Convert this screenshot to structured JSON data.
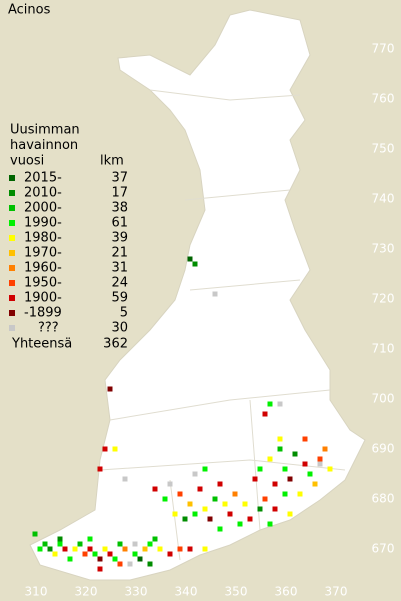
{
  "title": "Acinos",
  "legend": {
    "heading": [
      "Uusimman",
      "havainnon",
      "vuosi"
    ],
    "count_heading": "lkm",
    "items": [
      {
        "label": "2015-",
        "count": 37,
        "color": "#006400"
      },
      {
        "label": "2010-",
        "count": 17,
        "color": "#008c00"
      },
      {
        "label": "2000-",
        "count": 38,
        "color": "#00c000"
      },
      {
        "label": "1990-",
        "count": 61,
        "color": "#00f000"
      },
      {
        "label": "1980-",
        "count": 39,
        "color": "#ffff00"
      },
      {
        "label": "1970-",
        "count": 21,
        "color": "#ffc000"
      },
      {
        "label": "1960-",
        "count": 31,
        "color": "#ff8000"
      },
      {
        "label": "1950-",
        "count": 24,
        "color": "#ff4000"
      },
      {
        "label": "1900-",
        "count": 59,
        "color": "#d00000"
      },
      {
        "label": "-1899",
        "count": 5,
        "color": "#800000"
      },
      {
        "label": "???",
        "count": 30,
        "color": "#c8c8c8"
      }
    ],
    "total_label": "Yhteensä",
    "total": 362
  },
  "grid": {
    "x_labels": [
      310,
      320,
      330,
      340,
      350,
      360,
      370
    ],
    "y_labels": [
      770,
      760,
      750,
      740,
      730,
      720,
      710,
      700,
      690,
      680,
      670
    ]
  },
  "points": [
    [
      308,
      670,
      3
    ],
    [
      309,
      671,
      2
    ],
    [
      310,
      670,
      1
    ],
    [
      311,
      669,
      4
    ],
    [
      312,
      671,
      3
    ],
    [
      313,
      670,
      8
    ],
    [
      314,
      668,
      3
    ],
    [
      315,
      670,
      4
    ],
    [
      316,
      671,
      2
    ],
    [
      317,
      669,
      7
    ],
    [
      318,
      670,
      8
    ],
    [
      319,
      669,
      3
    ],
    [
      320,
      668,
      9
    ],
    [
      321,
      670,
      4
    ],
    [
      322,
      669,
      8
    ],
    [
      323,
      668,
      3
    ],
    [
      324,
      671,
      2
    ],
    [
      325,
      670,
      6
    ],
    [
      326,
      667,
      10
    ],
    [
      327,
      669,
      3
    ],
    [
      328,
      668,
      0
    ],
    [
      329,
      670,
      5
    ],
    [
      330,
      671,
      3
    ],
    [
      331,
      672,
      2
    ],
    [
      332,
      670,
      4
    ],
    [
      312,
      672,
      1
    ],
    [
      318,
      672,
      3
    ],
    [
      320,
      666,
      8
    ],
    [
      324,
      667,
      7
    ],
    [
      330,
      667,
      1
    ],
    [
      334,
      669,
      8
    ],
    [
      336,
      670,
      7
    ],
    [
      338,
      670,
      8
    ],
    [
      341,
      670,
      4
    ],
    [
      331,
      682,
      8
    ],
    [
      333,
      680,
      3
    ],
    [
      335,
      677,
      4
    ],
    [
      336,
      681,
      7
    ],
    [
      337,
      676,
      1
    ],
    [
      338,
      679,
      5
    ],
    [
      339,
      677,
      3
    ],
    [
      340,
      682,
      8
    ],
    [
      341,
      678,
      4
    ],
    [
      342,
      676,
      9
    ],
    [
      343,
      680,
      2
    ],
    [
      344,
      674,
      3
    ],
    [
      345,
      679,
      4
    ],
    [
      346,
      677,
      8
    ],
    [
      347,
      681,
      6
    ],
    [
      348,
      675,
      3
    ],
    [
      349,
      679,
      4
    ],
    [
      350,
      676,
      8
    ],
    [
      334,
      683,
      10
    ],
    [
      344,
      683,
      8
    ],
    [
      339,
      685,
      10
    ],
    [
      341,
      686,
      3
    ],
    [
      351,
      684,
      8
    ],
    [
      352,
      686,
      3
    ],
    [
      353,
      680,
      7
    ],
    [
      354,
      688,
      4
    ],
    [
      355,
      683,
      8
    ],
    [
      356,
      690,
      2
    ],
    [
      357,
      686,
      3
    ],
    [
      358,
      684,
      9
    ],
    [
      359,
      689,
      1
    ],
    [
      360,
      681,
      4
    ],
    [
      361,
      687,
      8
    ],
    [
      362,
      685,
      3
    ],
    [
      363,
      683,
      5
    ],
    [
      364,
      688,
      7
    ],
    [
      365,
      690,
      6
    ],
    [
      366,
      686,
      4
    ],
    [
      357,
      681,
      3
    ],
    [
      355,
      678,
      8
    ],
    [
      358,
      677,
      4
    ],
    [
      352,
      678,
      1
    ],
    [
      354,
      675,
      3
    ],
    [
      356,
      692,
      4
    ],
    [
      361,
      692,
      7
    ],
    [
      353,
      697,
      8
    ],
    [
      354,
      699,
      3
    ],
    [
      356,
      699,
      10
    ],
    [
      364,
      687,
      10
    ],
    [
      338,
      728,
      0
    ],
    [
      339,
      727,
      1
    ],
    [
      343,
      721,
      10
    ],
    [
      322,
      702,
      9
    ],
    [
      327,
      671,
      10
    ],
    [
      321,
      690,
      8
    ],
    [
      323,
      690,
      4
    ],
    [
      320,
      686,
      8
    ],
    [
      325,
      684,
      10
    ],
    [
      307,
      673,
      2
    ]
  ]
}
